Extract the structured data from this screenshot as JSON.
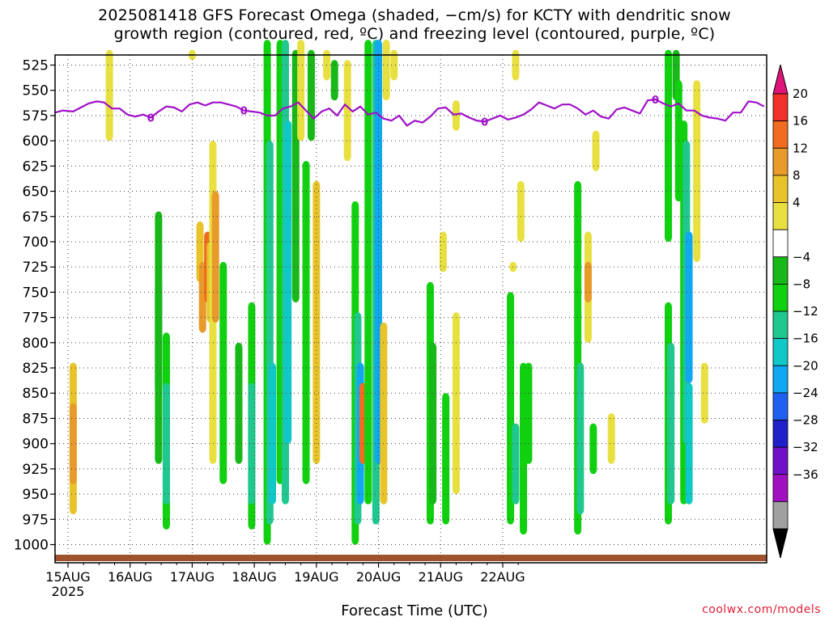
{
  "header": {
    "title_line1": "2025081418 GFS Forecast Omega (shaded, −cm/s) for KCTY with dendritic snow",
    "title_line2": "growth region (contoured, red, ºC) and freezing level (contoured, purple, ºC)"
  },
  "footer": {
    "xlabel": "Forecast Time (UTC)",
    "credit": "coolwx.com/models"
  },
  "chart_data": {
    "type": "heatmap",
    "xlabel": "Forecast Time (UTC)",
    "ylabel": "",
    "x_ticks": [
      "15AUG",
      "16AUG",
      "17AUG",
      "18AUG",
      "19AUG",
      "20AUG",
      "21AUG",
      "22AUG"
    ],
    "x_year_label": "2025",
    "x_range_hours": [
      -5,
      270
    ],
    "y_ticks": [
      525,
      550,
      575,
      600,
      625,
      650,
      675,
      700,
      725,
      750,
      775,
      800,
      825,
      850,
      875,
      900,
      925,
      950,
      975,
      1000
    ],
    "y_range_hpa": [
      515,
      1010
    ],
    "grid": true,
    "colorbar": {
      "labels": [
        20,
        16,
        12,
        8,
        4,
        -4,
        -8,
        -12,
        -16,
        -20,
        -24,
        -28,
        -32,
        -36
      ],
      "colors": [
        "#e0137a",
        "#f0302a",
        "#f06c20",
        "#e89a2a",
        "#e8c42a",
        "#e8e040",
        "#ffffff",
        "#18b818",
        "#10d010",
        "#20c890",
        "#10c8c8",
        "#10a8f0",
        "#2060f0",
        "#2020c8",
        "#7010c8",
        "#a010c0",
        "#a0a0a0",
        "#000000"
      ]
    },
    "freezing_level_contour_label": "0",
    "freezing_level_hpa": [
      [
        -5,
        572
      ],
      [
        -2,
        570
      ],
      [
        2,
        571
      ],
      [
        5,
        567
      ],
      [
        8,
        563
      ],
      [
        11,
        561
      ],
      [
        14,
        562
      ],
      [
        17,
        568
      ],
      [
        20,
        568
      ],
      [
        23,
        574
      ],
      [
        26,
        576
      ],
      [
        29,
        574
      ],
      [
        32,
        577
      ],
      [
        35,
        571
      ],
      [
        38,
        566
      ],
      [
        41,
        567
      ],
      [
        44,
        571
      ],
      [
        47,
        564
      ],
      [
        50,
        562
      ],
      [
        53,
        565
      ],
      [
        56,
        562
      ],
      [
        59,
        562
      ],
      [
        62,
        564
      ],
      [
        65,
        566
      ],
      [
        68,
        570
      ],
      [
        71,
        571
      ],
      [
        74,
        572
      ],
      [
        77,
        575
      ],
      [
        80,
        575
      ],
      [
        83,
        568
      ],
      [
        86,
        566
      ],
      [
        89,
        562
      ],
      [
        92,
        570
      ],
      [
        95,
        578
      ],
      [
        98,
        571
      ],
      [
        101,
        568
      ],
      [
        104,
        575
      ],
      [
        107,
        564
      ],
      [
        110,
        571
      ],
      [
        113,
        566
      ],
      [
        116,
        574
      ],
      [
        119,
        572
      ],
      [
        122,
        578
      ],
      [
        125,
        580
      ],
      [
        128,
        575
      ],
      [
        131,
        585
      ],
      [
        134,
        580
      ],
      [
        137,
        582
      ],
      [
        140,
        576
      ],
      [
        143,
        568
      ],
      [
        146,
        567
      ],
      [
        149,
        574
      ],
      [
        152,
        573
      ],
      [
        155,
        577
      ],
      [
        158,
        580
      ],
      [
        161,
        581
      ],
      [
        164,
        578
      ],
      [
        167,
        575
      ],
      [
        170,
        579
      ],
      [
        173,
        577
      ],
      [
        176,
        574
      ],
      [
        179,
        569
      ],
      [
        182,
        562
      ],
      [
        185,
        565
      ],
      [
        188,
        568
      ],
      [
        191,
        564
      ],
      [
        194,
        564
      ],
      [
        197,
        568
      ],
      [
        200,
        574
      ],
      [
        203,
        570
      ],
      [
        206,
        576
      ],
      [
        209,
        578
      ],
      [
        212,
        569
      ],
      [
        215,
        567
      ],
      [
        218,
        570
      ],
      [
        221,
        573
      ],
      [
        224,
        560
      ],
      [
        227,
        559
      ],
      [
        230,
        563
      ],
      [
        233,
        566
      ],
      [
        236,
        563
      ],
      [
        239,
        570
      ],
      [
        242,
        570
      ],
      [
        245,
        575
      ],
      [
        248,
        577
      ],
      [
        251,
        578
      ],
      [
        254,
        580
      ],
      [
        257,
        572
      ],
      [
        260,
        572
      ],
      [
        263,
        561
      ],
      [
        266,
        562
      ],
      [
        269,
        566
      ]
    ],
    "omega_shaded_cells": [
      {
        "t": 2,
        "p_top": 820,
        "p_bot": 970,
        "v": 8
      },
      {
        "t": 2,
        "p_top": 860,
        "p_bot": 940,
        "v": 12
      },
      {
        "t": 16,
        "p_top": 510,
        "p_bot": 600,
        "v": 4
      },
      {
        "t": 35,
        "p_top": 670,
        "p_bot": 850,
        "v": -4
      },
      {
        "t": 35,
        "p_top": 740,
        "p_bot": 920,
        "v": -4
      },
      {
        "t": 38,
        "p_top": 790,
        "p_bot": 985,
        "v": -8
      },
      {
        "t": 38,
        "p_top": 840,
        "p_bot": 960,
        "v": -12
      },
      {
        "t": 48,
        "p_top": 510,
        "p_bot": 520,
        "v": 4
      },
      {
        "t": 51,
        "p_top": 680,
        "p_bot": 740,
        "v": 8
      },
      {
        "t": 52,
        "p_top": 720,
        "p_bot": 790,
        "v": 12
      },
      {
        "t": 54,
        "p_top": 690,
        "p_bot": 760,
        "v": 16
      },
      {
        "t": 55,
        "p_top": 700,
        "p_bot": 780,
        "v": 8
      },
      {
        "t": 56,
        "p_top": 600,
        "p_bot": 920,
        "v": 4
      },
      {
        "t": 57,
        "p_top": 650,
        "p_bot": 780,
        "v": 12
      },
      {
        "t": 60,
        "p_top": 720,
        "p_bot": 940,
        "v": -8
      },
      {
        "t": 66,
        "p_top": 800,
        "p_bot": 920,
        "v": -4
      },
      {
        "t": 71,
        "p_top": 760,
        "p_bot": 985,
        "v": -8
      },
      {
        "t": 71,
        "p_top": 840,
        "p_bot": 960,
        "v": -12
      },
      {
        "t": 77,
        "p_top": 500,
        "p_bot": 1000,
        "v": -8
      },
      {
        "t": 78,
        "p_top": 600,
        "p_bot": 980,
        "v": -12
      },
      {
        "t": 79,
        "p_top": 820,
        "p_bot": 960,
        "v": -16
      },
      {
        "t": 82,
        "p_top": 500,
        "p_bot": 940,
        "v": -8
      },
      {
        "t": 84,
        "p_top": 500,
        "p_bot": 960,
        "v": -12
      },
      {
        "t": 85,
        "p_top": 580,
        "p_bot": 900,
        "v": -16
      },
      {
        "t": 88,
        "p_top": 510,
        "p_bot": 760,
        "v": -4
      },
      {
        "t": 90,
        "p_top": 500,
        "p_bot": 600,
        "v": 4
      },
      {
        "t": 92,
        "p_top": 620,
        "p_bot": 940,
        "v": -8
      },
      {
        "t": 94,
        "p_top": 510,
        "p_bot": 600,
        "v": -4
      },
      {
        "t": 96,
        "p_top": 640,
        "p_bot": 920,
        "v": 8
      },
      {
        "t": 100,
        "p_top": 510,
        "p_bot": 540,
        "v": 4
      },
      {
        "t": 103,
        "p_top": 520,
        "p_bot": 560,
        "v": -4
      },
      {
        "t": 108,
        "p_top": 520,
        "p_bot": 620,
        "v": 4
      },
      {
        "t": 111,
        "p_top": 660,
        "p_bot": 1000,
        "v": -8
      },
      {
        "t": 112,
        "p_top": 770,
        "p_bot": 980,
        "v": -12
      },
      {
        "t": 113,
        "p_top": 820,
        "p_bot": 960,
        "v": -20
      },
      {
        "t": 114,
        "p_top": 840,
        "p_bot": 920,
        "v": 16
      },
      {
        "t": 116,
        "p_top": 500,
        "p_bot": 960,
        "v": -8
      },
      {
        "t": 119,
        "p_top": 500,
        "p_bot": 980,
        "v": -12
      },
      {
        "t": 120,
        "p_top": 500,
        "p_bot": 920,
        "v": -20
      },
      {
        "t": 123,
        "p_top": 500,
        "p_bot": 560,
        "v": 4
      },
      {
        "t": 122,
        "p_top": 780,
        "p_bot": 960,
        "v": 8
      },
      {
        "t": 126,
        "p_top": 510,
        "p_bot": 540,
        "v": 4
      },
      {
        "t": 140,
        "p_top": 740,
        "p_bot": 980,
        "v": -8
      },
      {
        "t": 141,
        "p_top": 800,
        "p_bot": 960,
        "v": -4
      },
      {
        "t": 145,
        "p_top": 690,
        "p_bot": 730,
        "v": 4
      },
      {
        "t": 146,
        "p_top": 850,
        "p_bot": 980,
        "v": -8
      },
      {
        "t": 150,
        "p_top": 560,
        "p_bot": 590,
        "v": 4
      },
      {
        "t": 150,
        "p_top": 770,
        "p_bot": 950,
        "v": 4
      },
      {
        "t": 171,
        "p_top": 750,
        "p_bot": 980,
        "v": -8
      },
      {
        "t": 173,
        "p_top": 880,
        "p_bot": 960,
        "v": -12
      },
      {
        "t": 173,
        "p_top": 510,
        "p_bot": 540,
        "v": 4
      },
      {
        "t": 172,
        "p_top": 720,
        "p_bot": 730,
        "v": 4
      },
      {
        "t": 175,
        "p_top": 640,
        "p_bot": 700,
        "v": 4
      },
      {
        "t": 176,
        "p_top": 820,
        "p_bot": 990,
        "v": -8
      },
      {
        "t": 178,
        "p_top": 820,
        "p_bot": 920,
        "v": -8
      },
      {
        "t": 197,
        "p_top": 640,
        "p_bot": 990,
        "v": -8
      },
      {
        "t": 198,
        "p_top": 820,
        "p_bot": 970,
        "v": -12
      },
      {
        "t": 201,
        "p_top": 690,
        "p_bot": 800,
        "v": 4
      },
      {
        "t": 201,
        "p_top": 720,
        "p_bot": 760,
        "v": 12
      },
      {
        "t": 203,
        "p_top": 880,
        "p_bot": 930,
        "v": -8
      },
      {
        "t": 204,
        "p_top": 590,
        "p_bot": 630,
        "v": 4
      },
      {
        "t": 210,
        "p_top": 870,
        "p_bot": 920,
        "v": 4
      },
      {
        "t": 232,
        "p_top": 510,
        "p_bot": 700,
        "v": -8
      },
      {
        "t": 232,
        "p_top": 760,
        "p_bot": 980,
        "v": -8
      },
      {
        "t": 233,
        "p_top": 800,
        "p_bot": 960,
        "v": -12
      },
      {
        "t": 235,
        "p_top": 510,
        "p_bot": 560,
        "v": -4
      },
      {
        "t": 236,
        "p_top": 540,
        "p_bot": 660,
        "v": -8
      },
      {
        "t": 238,
        "p_top": 580,
        "p_bot": 960,
        "v": -8
      },
      {
        "t": 239,
        "p_top": 600,
        "p_bot": 900,
        "v": -12
      },
      {
        "t": 240,
        "p_top": 690,
        "p_bot": 840,
        "v": -20
      },
      {
        "t": 240,
        "p_top": 840,
        "p_bot": 960,
        "v": -16
      },
      {
        "t": 243,
        "p_top": 540,
        "p_bot": 720,
        "v": 4
      },
      {
        "t": 246,
        "p_top": 820,
        "p_bot": 880,
        "v": 4
      }
    ],
    "ground_band_color": "#a0522d"
  }
}
